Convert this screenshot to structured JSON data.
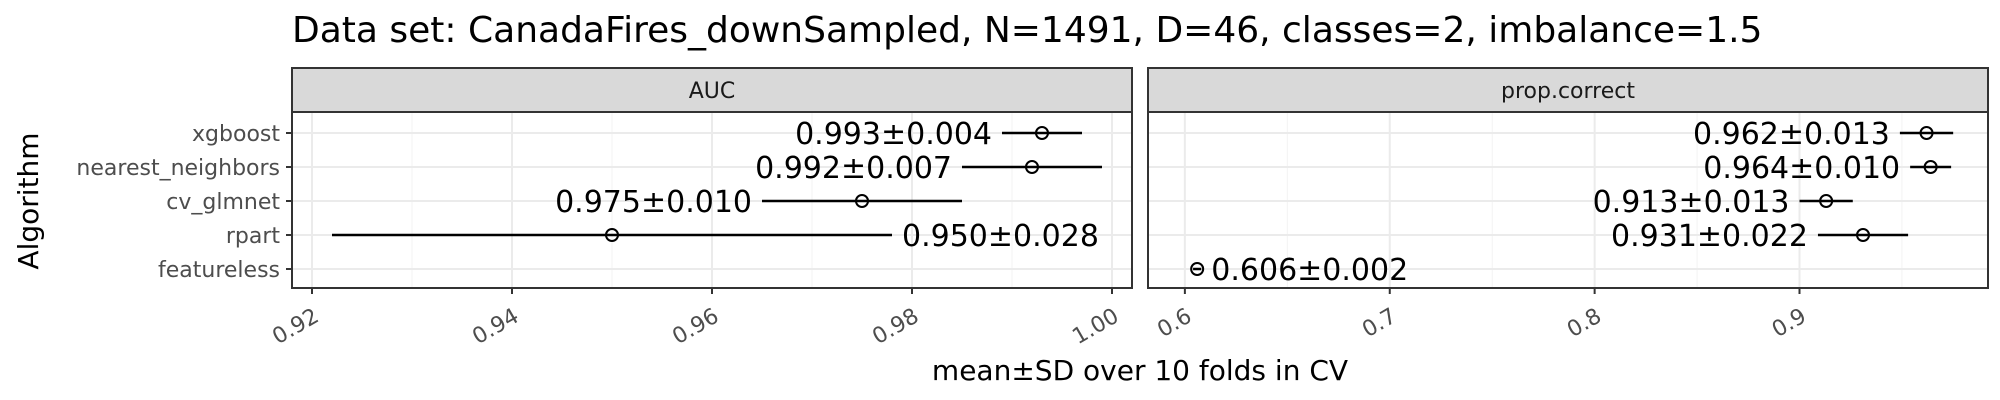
{
  "title": "Data set: CanadaFires_downSampled, N=1491, D=46, classes=2, imbalance=1.5",
  "chart_data": {
    "type": "scatter",
    "title": "Data set: CanadaFires_downSampled, N=1491, D=46, classes=2, imbalance=1.5",
    "xlabel": "mean±SD over 10 folds in CV",
    "ylabel": "Algorithm",
    "categories": [
      "xgboost",
      "nearest_neighbors",
      "cv_glmnet",
      "rpart",
      "featureless"
    ],
    "grid": true,
    "panels": [
      {
        "name": "AUC",
        "xlim": [
          0.918,
          1.002
        ],
        "xticks": [
          0.92,
          0.94,
          0.96,
          0.98,
          1.0
        ],
        "xtick_labels": [
          "0.92",
          "0.94",
          "0.96",
          "0.98",
          "1.00"
        ],
        "points": [
          {
            "algorithm": "xgboost",
            "mean": 0.993,
            "sd": 0.004,
            "label": "0.993±0.004",
            "label_side": "left"
          },
          {
            "algorithm": "nearest_neighbors",
            "mean": 0.992,
            "sd": 0.007,
            "label": "0.992±0.007",
            "label_side": "left"
          },
          {
            "algorithm": "cv_glmnet",
            "mean": 0.975,
            "sd": 0.01,
            "label": "0.975±0.010",
            "label_side": "left"
          },
          {
            "algorithm": "rpart",
            "mean": 0.95,
            "sd": 0.028,
            "label": "0.950±0.028",
            "label_side": "right"
          }
        ]
      },
      {
        "name": "prop.correct",
        "xlim": [
          0.582,
          0.992
        ],
        "xticks": [
          0.6,
          0.7,
          0.8,
          0.9
        ],
        "xtick_labels": [
          "0.6",
          "0.7",
          "0.8",
          "0.9"
        ],
        "points": [
          {
            "algorithm": "xgboost",
            "mean": 0.962,
            "sd": 0.013,
            "label": "0.962±0.013",
            "label_side": "left"
          },
          {
            "algorithm": "nearest_neighbors",
            "mean": 0.964,
            "sd": 0.01,
            "label": "0.964±0.010",
            "label_side": "left"
          },
          {
            "algorithm": "cv_glmnet",
            "mean": 0.913,
            "sd": 0.013,
            "label": "0.913±0.013",
            "label_side": "left"
          },
          {
            "algorithm": "rpart",
            "mean": 0.931,
            "sd": 0.022,
            "label": "0.931±0.022",
            "label_side": "left"
          },
          {
            "algorithm": "featureless",
            "mean": 0.606,
            "sd": 0.002,
            "label": "0.606±0.002",
            "label_side": "right"
          }
        ]
      }
    ]
  }
}
